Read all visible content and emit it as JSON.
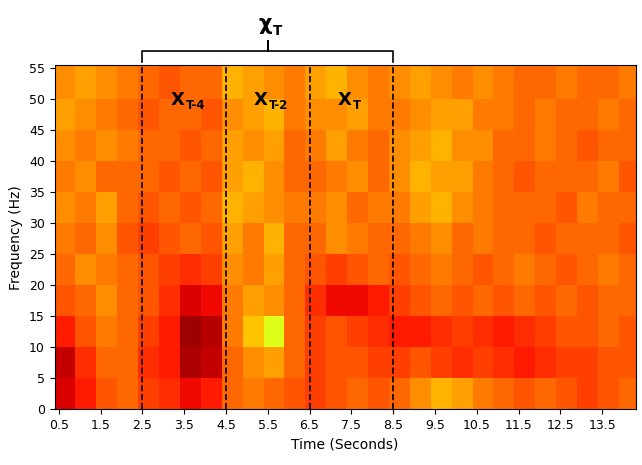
{
  "chart_data": {
    "type": "heatmap",
    "xlabel": "Time (Seconds)",
    "ylabel": "Frequency (Hz)",
    "xlim": [
      0.4,
      14.3
    ],
    "ylim": [
      0,
      55.5
    ],
    "xticks": [
      0.5,
      1.5,
      2.5,
      3.5,
      4.5,
      5.5,
      6.5,
      7.5,
      8.5,
      9.5,
      10.5,
      11.5,
      12.5,
      13.5
    ],
    "yticks": [
      0,
      5,
      10,
      15,
      20,
      25,
      30,
      35,
      40,
      45,
      50,
      55
    ],
    "x_edges": [
      0.4,
      0.9,
      1.4,
      1.9,
      2.4,
      2.9,
      3.4,
      3.9,
      4.4,
      4.9,
      5.4,
      5.9,
      6.4,
      6.9,
      7.4,
      7.9,
      8.4,
      8.9,
      9.4,
      9.9,
      10.4,
      10.9,
      11.4,
      11.9,
      12.4,
      12.9,
      13.4,
      13.9,
      14.4
    ],
    "y_edges": [
      0,
      5,
      10,
      15,
      20,
      25,
      30,
      35,
      40,
      45,
      50,
      55.5
    ],
    "zlim": [
      0,
      100
    ],
    "cells": [
      [
        92,
        88,
        82,
        80,
        84,
        86,
        90,
        88,
        80,
        78,
        80,
        82,
        84,
        82,
        80,
        82,
        80,
        76,
        72,
        74,
        78,
        80,
        82,
        80,
        82,
        84,
        82,
        80
      ],
      [
        94,
        86,
        80,
        80,
        86,
        88,
        96,
        94,
        80,
        76,
        74,
        80,
        84,
        82,
        82,
        84,
        84,
        82,
        84,
        86,
        84,
        86,
        88,
        86,
        84,
        84,
        82,
        82
      ],
      [
        88,
        82,
        78,
        80,
        84,
        88,
        97,
        95,
        78,
        70,
        62,
        80,
        84,
        82,
        84,
        86,
        88,
        88,
        86,
        84,
        86,
        88,
        86,
        84,
        82,
        82,
        80,
        82
      ],
      [
        82,
        80,
        76,
        80,
        82,
        86,
        92,
        90,
        78,
        74,
        76,
        80,
        86,
        90,
        90,
        88,
        84,
        82,
        80,
        82,
        80,
        82,
        80,
        82,
        80,
        82,
        80,
        80
      ],
      [
        80,
        76,
        78,
        80,
        82,
        84,
        86,
        84,
        76,
        78,
        74,
        80,
        82,
        84,
        82,
        80,
        82,
        80,
        78,
        80,
        82,
        80,
        78,
        80,
        82,
        80,
        78,
        80
      ],
      [
        78,
        80,
        76,
        82,
        84,
        82,
        80,
        82,
        74,
        78,
        72,
        80,
        80,
        76,
        78,
        80,
        80,
        78,
        76,
        80,
        78,
        80,
        80,
        82,
        80,
        80,
        80,
        82
      ],
      [
        76,
        78,
        74,
        80,
        82,
        80,
        82,
        80,
        72,
        74,
        76,
        78,
        78,
        76,
        80,
        78,
        78,
        74,
        72,
        76,
        78,
        80,
        80,
        80,
        82,
        78,
        80,
        80
      ],
      [
        78,
        76,
        80,
        80,
        80,
        82,
        80,
        82,
        74,
        72,
        76,
        80,
        80,
        78,
        76,
        80,
        76,
        72,
        74,
        74,
        78,
        80,
        82,
        80,
        80,
        80,
        78,
        82
      ],
      [
        76,
        78,
        76,
        78,
        80,
        80,
        82,
        80,
        74,
        76,
        74,
        80,
        78,
        74,
        78,
        80,
        76,
        74,
        72,
        76,
        76,
        80,
        80,
        78,
        80,
        82,
        80,
        80
      ],
      [
        74,
        76,
        78,
        80,
        82,
        80,
        80,
        82,
        76,
        74,
        72,
        78,
        76,
        76,
        74,
        78,
        78,
        76,
        74,
        74,
        78,
        78,
        80,
        78,
        80,
        80,
        78,
        80
      ],
      [
        76,
        74,
        76,
        78,
        80,
        82,
        80,
        80,
        72,
        74,
        76,
        78,
        74,
        72,
        76,
        78,
        76,
        74,
        76,
        78,
        76,
        78,
        80,
        80,
        78,
        80,
        80,
        78
      ]
    ],
    "windows": [
      {
        "start": 2.5,
        "end": 4.5,
        "label": {
          "main": "X",
          "sub": "T-4"
        }
      },
      {
        "start": 4.5,
        "end": 6.5,
        "label": {
          "main": "X",
          "sub": "T-2"
        }
      },
      {
        "start": 6.5,
        "end": 8.5,
        "label": {
          "main": "X",
          "sub": "T"
        }
      }
    ],
    "group": {
      "start": 2.5,
      "end": 8.5,
      "label": {
        "main": "χ",
        "sub": "T"
      }
    }
  }
}
